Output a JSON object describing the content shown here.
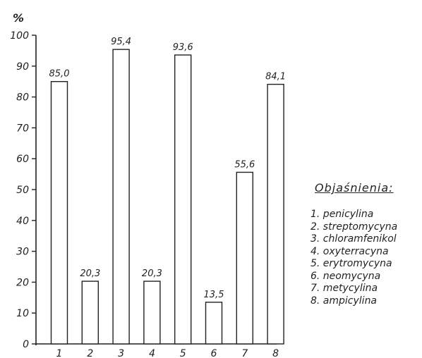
{
  "chart_data": {
    "type": "bar",
    "categories": [
      "1",
      "2",
      "3",
      "4",
      "5",
      "6",
      "7",
      "8"
    ],
    "values": [
      85.0,
      20.3,
      95.4,
      20.3,
      93.6,
      13.5,
      55.6,
      84.1
    ],
    "value_labels": [
      "85,0",
      "20,3",
      "95,4",
      "20,3",
      "93,6",
      "13,5",
      "55,6",
      "84,1"
    ],
    "ylabel": "%",
    "ylim": [
      0,
      100
    ],
    "yticks": [
      0,
      10,
      20,
      30,
      40,
      50,
      60,
      70,
      80,
      90,
      100
    ],
    "grid": false
  },
  "legend": {
    "title": "Objaśnienia:",
    "items": [
      "1. penicylina",
      "2. streptomycyna",
      "3. chloramfenikol",
      "4. oxyterracyna",
      "5. erytromycyna",
      "6. neomycyna",
      "7. metycylina",
      "8. ampicylina"
    ]
  }
}
